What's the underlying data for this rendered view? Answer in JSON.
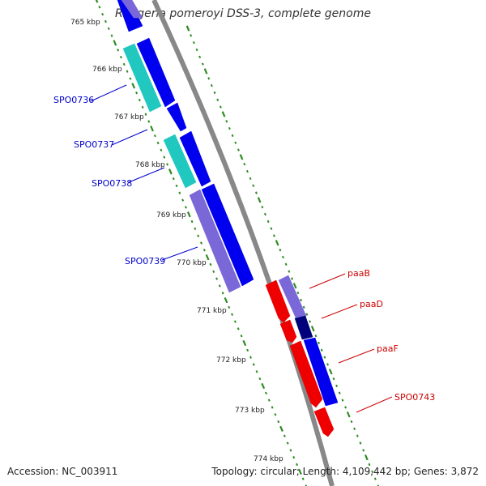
{
  "title": "Ruegeria pomeroyi DSS-3, complete genome",
  "accession": "Accession: NC_003911",
  "summary": "Topology: circular; Length: 4,109,442 bp; Genes: 3,872",
  "colors": {
    "backbone": "#888888",
    "tick_dots": "#2e8b22",
    "forward_gene": "#0000ee",
    "feature_cyan": "#20c8c0",
    "feature_purple": "#7b68d8",
    "reverse_gene": "#ee0000",
    "dark_feature": "#00007a",
    "left_label": "#0000cc",
    "right_label": "#cc0000"
  },
  "ticks": [
    "765 kbp",
    "766 kbp",
    "767 kbp",
    "768 kbp",
    "769 kbp",
    "770 kbp",
    "771 kbp",
    "772 kbp",
    "773 kbp",
    "774 kbp"
  ],
  "gene_labels_left": [
    "SPO0736",
    "SPO0737",
    "SPO0738",
    "SPO0739"
  ],
  "gene_labels_right": [
    "paaB",
    "paaD",
    "paaF",
    "SPO0743"
  ]
}
